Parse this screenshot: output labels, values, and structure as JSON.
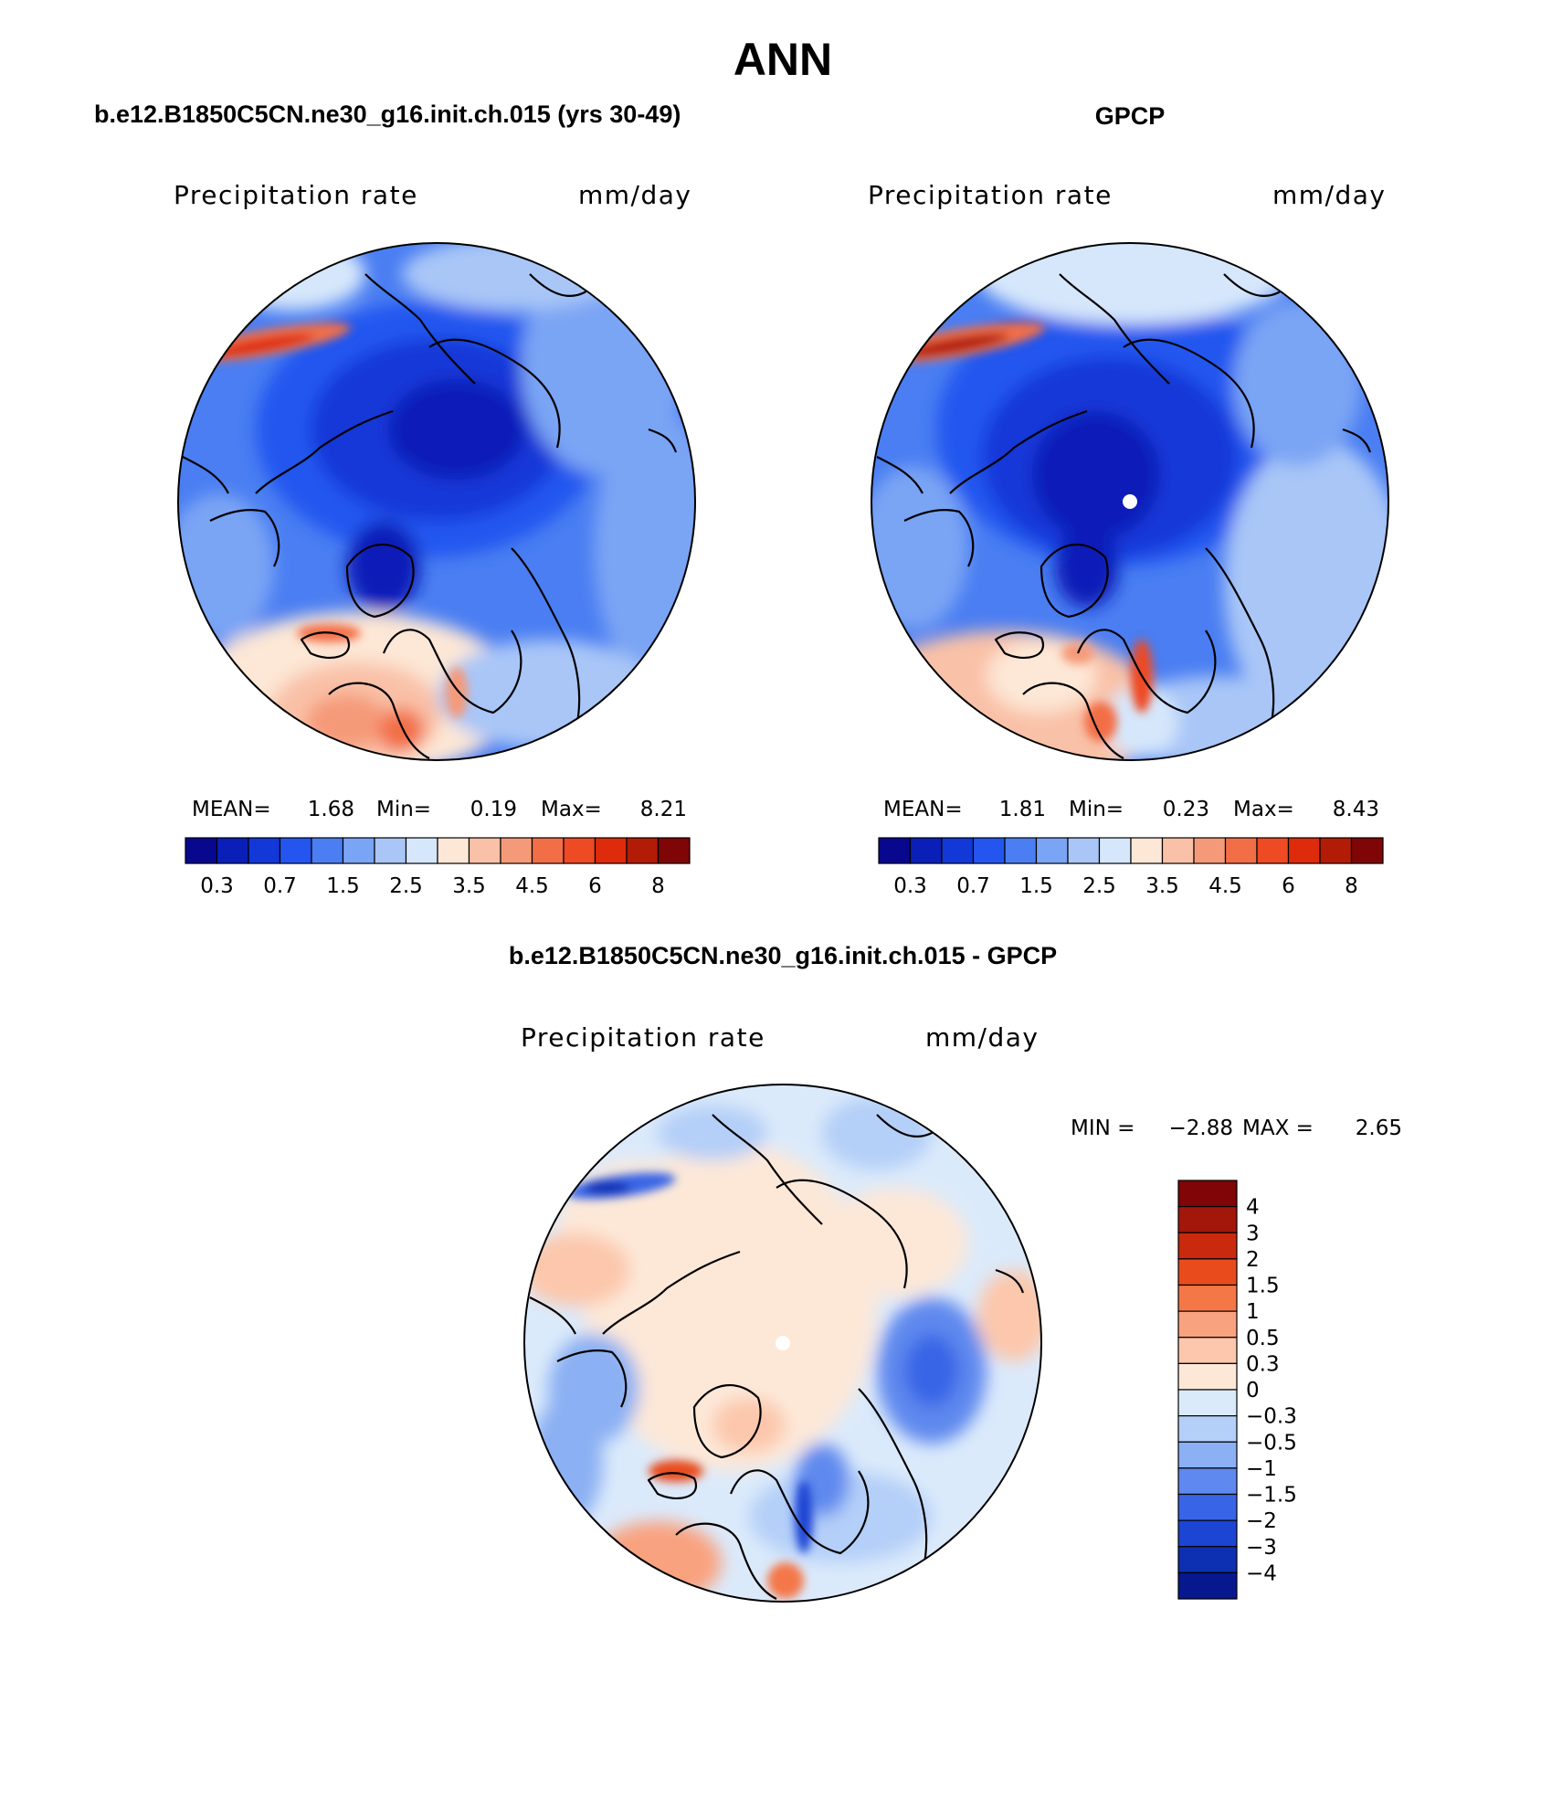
{
  "page": {
    "title": "ANN"
  },
  "panels": [
    {
      "id": "model",
      "title": "b.e12.B1850C5CN.ne30_g16.init.ch.015 (yrs 30-49)",
      "variable": "Precipitation rate",
      "units": "mm/day",
      "stats": {
        "mean_label": "MEAN=",
        "mean": "1.68",
        "min_label": "Min=",
        "min": "0.19",
        "max_label": "Max=",
        "max": "8.21"
      }
    },
    {
      "id": "obs",
      "title": "GPCP",
      "variable": "Precipitation rate",
      "units": "mm/day",
      "stats": {
        "mean_label": "MEAN=",
        "mean": "1.81",
        "min_label": "Min=",
        "min": "0.23",
        "max_label": "Max=",
        "max": "8.43"
      }
    },
    {
      "id": "diff",
      "title": "b.e12.B1850C5CN.ne30_g16.init.ch.015 - GPCP",
      "variable": "Precipitation rate",
      "units": "mm/day",
      "stats": {
        "min_label": "MIN =",
        "min": "−2.88",
        "max_label": "MAX =",
        "max": "2.65"
      }
    }
  ],
  "abs_colorbar": {
    "colors": [
      "#08088f",
      "#0a1fb8",
      "#1238d8",
      "#2456ef",
      "#4a7ef2",
      "#7aa4f4",
      "#a9c6f7",
      "#d6e7fb",
      "#fde7d6",
      "#f9c1a7",
      "#f59a78",
      "#f26e47",
      "#ee4a23",
      "#dd2b0c",
      "#b21c07",
      "#7f0506"
    ],
    "labels": [
      "0.3",
      "0.7",
      "1.5",
      "2.5",
      "3.5",
      "4.5",
      "6",
      "8"
    ]
  },
  "diff_colorbar": {
    "colors_top_to_bottom": [
      "#7f0506",
      "#a3160a",
      "#c92a0e",
      "#e84c1d",
      "#f47748",
      "#f9a27f",
      "#fcc7ac",
      "#fde8d8",
      "#dbeafb",
      "#b4cff8",
      "#8bb0f3",
      "#5f89ee",
      "#3865e6",
      "#1c45d4",
      "#0d2fb2",
      "#07188f"
    ],
    "labels": [
      "4",
      "3",
      "2",
      "1.5",
      "1",
      "0.5",
      "0.3",
      "0",
      "−0.3",
      "−0.5",
      "−1",
      "−1.5",
      "−2",
      "−3",
      "−4"
    ]
  },
  "maps": {
    "projection": "north-polar-stereographic",
    "coastline_color": "#000000"
  }
}
